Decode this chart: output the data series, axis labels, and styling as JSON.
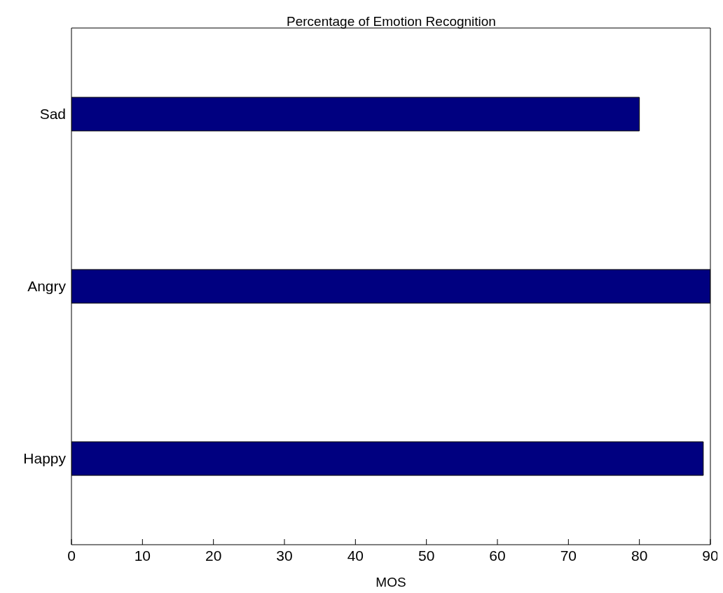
{
  "chart_data": {
    "type": "bar",
    "orientation": "horizontal",
    "title": "Percentage of Emotion Recognition",
    "xlabel": "MOS",
    "categories": [
      "Sad",
      "Angry",
      "Happy"
    ],
    "values": [
      80,
      90,
      89
    ],
    "color": "#000080",
    "xlim": [
      0,
      90
    ],
    "xticks": [
      0,
      10,
      20,
      30,
      40,
      50,
      60,
      70,
      80,
      90
    ],
    "grid": false,
    "legend": false
  }
}
